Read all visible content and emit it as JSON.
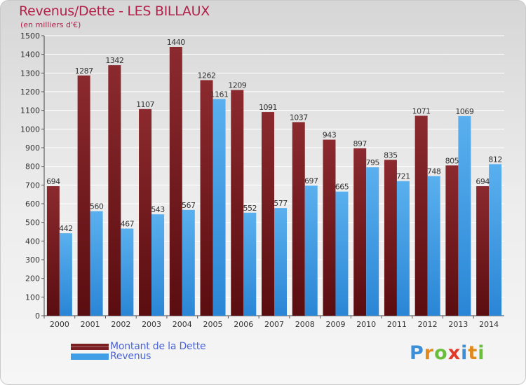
{
  "title": "Revenus/Dette - LES BILLAUX",
  "subtitle": "(en milliers d'€)",
  "legend": [
    {
      "label": "Montant de la Dette",
      "color": "#7a1e22"
    },
    {
      "label": "Revenus",
      "color": "#3f9ee6"
    }
  ],
  "logo": {
    "text": "Proxiti",
    "colors": [
      "#3a8fd8",
      "#e08a1e",
      "#6abf3a",
      "#e03a2a",
      "#3a8fd8",
      "#e08a1e",
      "#6abf3a"
    ]
  },
  "colors": {
    "debt": "#8b2a2e",
    "debt_dark": "#5a0d10",
    "revenue": "#5ab0ee",
    "revenue_dark": "#2a86d6",
    "text": "#333333"
  },
  "chart_data": {
    "type": "bar",
    "categories": [
      "2000",
      "2001",
      "2002",
      "2003",
      "2004",
      "2005",
      "2006",
      "2007",
      "2008",
      "2009",
      "2010",
      "2011",
      "2012",
      "2013",
      "2014"
    ],
    "series": [
      {
        "name": "Montant de la Dette",
        "values": [
          694,
          1287,
          1342,
          1107,
          1440,
          1262,
          1209,
          1091,
          1037,
          943,
          897,
          835,
          1071,
          805,
          694
        ]
      },
      {
        "name": "Revenus",
        "values": [
          442,
          560,
          467,
          543,
          567,
          1161,
          552,
          577,
          697,
          665,
          795,
          721,
          748,
          1069,
          812
        ]
      }
    ],
    "ylim": [
      0,
      1500
    ],
    "yticks": [
      0,
      100,
      200,
      300,
      400,
      500,
      600,
      700,
      800,
      900,
      1000,
      1100,
      1200,
      1300,
      1400,
      1500
    ],
    "grid": true,
    "xlabel": "",
    "ylabel": ""
  }
}
